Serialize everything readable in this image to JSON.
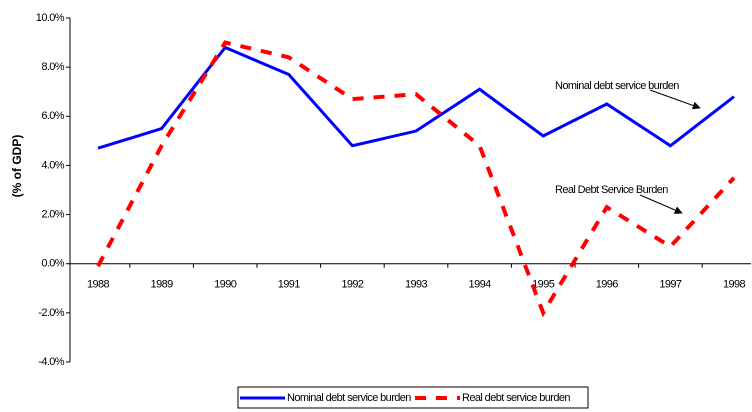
{
  "chart_data": {
    "type": "line",
    "y_label": "(% of GDP)",
    "categories": [
      "1988",
      "1989",
      "1990",
      "1991",
      "1992",
      "1993",
      "1994",
      "1995",
      "1996",
      "1997",
      "1998"
    ],
    "series": [
      {
        "name": "Nominal debt service burden",
        "color": "#0000ff",
        "dashed": false,
        "values": [
          4.7,
          5.5,
          8.8,
          7.7,
          4.8,
          5.4,
          7.1,
          5.2,
          6.5,
          4.8,
          6.8
        ]
      },
      {
        "name": "Real debt service burden",
        "color": "#ff0000",
        "dashed": true,
        "values": [
          -0.1,
          4.8,
          9.0,
          8.4,
          6.7,
          6.9,
          4.8,
          -2.0,
          2.3,
          0.7,
          3.5
        ]
      }
    ],
    "ylim": [
      -4,
      10
    ],
    "yticks": [
      {
        "value": -4,
        "label": "-4.0%"
      },
      {
        "value": -2,
        "label": "-2.0%"
      },
      {
        "value": 0,
        "label": "0.0%"
      },
      {
        "value": 2,
        "label": "2.0%"
      },
      {
        "value": 4,
        "label": "4.0%"
      },
      {
        "value": 6,
        "label": "6.0%"
      },
      {
        "value": 8,
        "label": "8.0%"
      },
      {
        "value": 10,
        "label": "10.0%"
      }
    ],
    "annotations": [
      "Nominal debt service burden",
      "Real Debt Service Burden"
    ],
    "legend": "bottom",
    "grid": false
  }
}
